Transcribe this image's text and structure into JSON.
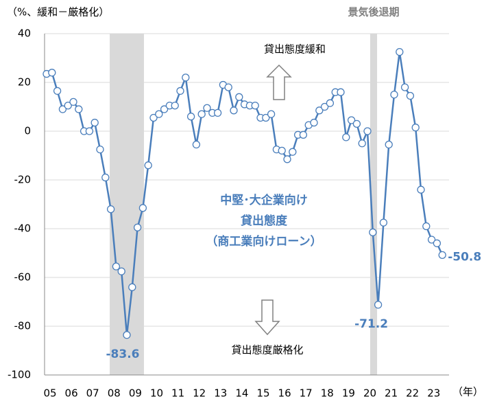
{
  "chart_data": {
    "type": "line",
    "y_axis_label": "（%、緩和－厳格化）",
    "recession_label": "景気後退期",
    "annotations": [
      "貸出態度緩和",
      "貸出態度厳格化",
      "中堅･大企業向け",
      "貸出態度",
      "（商工業向けローン）"
    ],
    "x_unit_label": "（年）",
    "xticks": [
      "05",
      "06",
      "07",
      "08",
      "09",
      "10",
      "11",
      "12",
      "13",
      "14",
      "15",
      "16",
      "17",
      "18",
      "19",
      "20",
      "21",
      "22",
      "23"
    ],
    "series": [
      {
        "name": "中堅･大企業向け貸出態度",
        "color": "#4a7ebb",
        "values": [
          23.5,
          24,
          16.5,
          9,
          10.5,
          12,
          9,
          0,
          0,
          3.5,
          -7.5,
          -19,
          -32,
          -55.5,
          -57.5,
          -83.6,
          -64,
          -39.5,
          -31.5,
          -14,
          5.5,
          7,
          9,
          10.5,
          10.5,
          16.5,
          22,
          6,
          -5.5,
          7,
          9.5,
          7.5,
          7.5,
          19,
          18,
          8.5,
          14,
          11,
          10.5,
          10.5,
          5.5,
          5.5,
          7,
          -7.5,
          -8,
          -11.5,
          -8.5,
          -1.5,
          -1.5,
          2.5,
          3.5,
          8.5,
          10,
          11.5,
          16,
          16,
          -2.5,
          4.5,
          3,
          -5,
          0,
          -41.5,
          -71.2,
          -37.5,
          -5.5,
          15,
          32.5,
          18,
          14.5,
          1.5,
          -24,
          -39,
          -44.5,
          -46,
          -50.8
        ]
      }
    ],
    "shaded_periods": [
      [
        11.8,
        18.2
      ],
      [
        60.5,
        61.8
      ]
    ],
    "ylim": [
      -100,
      40
    ],
    "yticks": [
      -100,
      -80,
      -60,
      -40,
      -20,
      0,
      20,
      40
    ],
    "grid": true
  }
}
